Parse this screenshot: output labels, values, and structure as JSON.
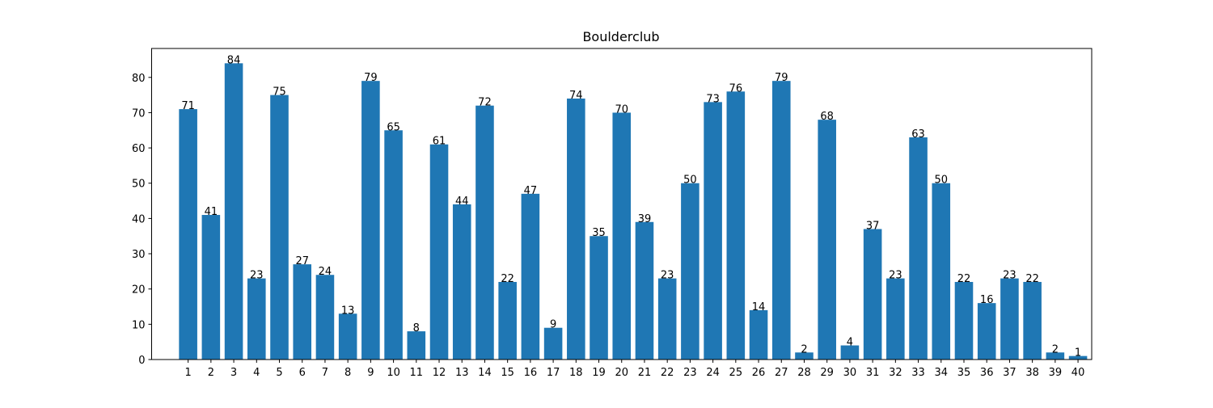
{
  "chart_data": {
    "type": "bar",
    "title": "Boulderclub",
    "xlabel": "",
    "ylabel": "",
    "categories": [
      "1",
      "2",
      "3",
      "4",
      "5",
      "6",
      "7",
      "8",
      "9",
      "10",
      "11",
      "12",
      "13",
      "14",
      "15",
      "16",
      "17",
      "18",
      "19",
      "20",
      "21",
      "22",
      "23",
      "24",
      "25",
      "26",
      "27",
      "28",
      "29",
      "30",
      "31",
      "32",
      "33",
      "34",
      "35",
      "36",
      "37",
      "38",
      "39",
      "40"
    ],
    "values": [
      71,
      41,
      84,
      23,
      75,
      27,
      24,
      13,
      79,
      65,
      8,
      61,
      44,
      72,
      22,
      47,
      9,
      74,
      35,
      70,
      39,
      23,
      50,
      73,
      76,
      14,
      79,
      2,
      68,
      4,
      37,
      23,
      63,
      50,
      22,
      16,
      23,
      22,
      2,
      1
    ],
    "ylim": [
      0,
      88.2
    ],
    "yticks": [
      0,
      10,
      20,
      30,
      40,
      50,
      60,
      70,
      80
    ],
    "bar_color": "#1f77b4",
    "grid": false,
    "legend": "none",
    "data_labels": true
  }
}
